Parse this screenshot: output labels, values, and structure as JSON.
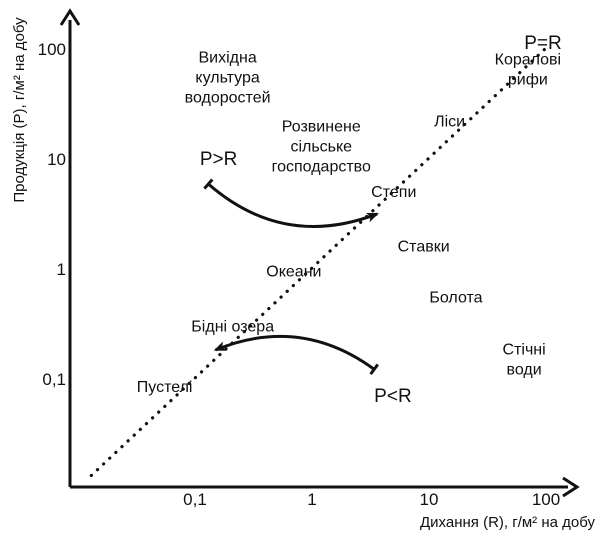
{
  "chart_data": {
    "type": "scatter",
    "title": "",
    "xlabel": "Дихання (R), г/м² на добу",
    "ylabel": "Продукція (P), г/м² на добу",
    "scale": "log",
    "xlim": [
      0.01,
      300
    ],
    "ylim": [
      0.01,
      300
    ],
    "x_ticks": [
      {
        "value": 0.1,
        "label": "0,1"
      },
      {
        "value": 1,
        "label": "1"
      },
      {
        "value": 10,
        "label": "10"
      },
      {
        "value": 100,
        "label": "100"
      }
    ],
    "y_ticks": [
      {
        "value": 0.1,
        "label": "0,1"
      },
      {
        "value": 1,
        "label": "1"
      },
      {
        "value": 10,
        "label": "10"
      },
      {
        "value": 100,
        "label": "100"
      }
    ],
    "grid": false,
    "diagonal": {
      "label": "P=R",
      "x": [
        0.013,
        100
      ],
      "y": [
        0.013,
        100
      ]
    },
    "regions": [
      {
        "lines": [
          "Вихідна",
          "культура",
          "водоростей"
        ],
        "x": 0.19,
        "y": 55
      },
      {
        "lines": [
          "Розвинене",
          "сільське",
          "господарство"
        ],
        "x": 1.2,
        "y": 13
      },
      {
        "lines": [
          "Коралові",
          "рифи"
        ],
        "x": 70,
        "y": 65
      },
      {
        "lines": [
          "Ліси"
        ],
        "x": 15,
        "y": 22
      },
      {
        "lines": [
          "Степи"
        ],
        "x": 5,
        "y": 5
      },
      {
        "lines": [
          "Ставки"
        ],
        "x": 9,
        "y": 1.6
      },
      {
        "lines": [
          "Океани"
        ],
        "x": 0.7,
        "y": 0.95
      },
      {
        "lines": [
          "Болота"
        ],
        "x": 17,
        "y": 0.55
      },
      {
        "lines": [
          "Бідні озера"
        ],
        "x": 0.21,
        "y": 0.3
      },
      {
        "lines": [
          "Стічні",
          "води"
        ],
        "x": 65,
        "y": 0.15
      },
      {
        "lines": [
          "Пустелі"
        ],
        "x": 0.055,
        "y": 0.085
      }
    ],
    "annotations": [
      {
        "label": "P>R",
        "x": 0.11,
        "y": 10
      },
      {
        "label": "P<R",
        "x": 3.4,
        "y": 0.07
      }
    ],
    "arrows": [
      {
        "from": [
          0.13,
          5.8
        ],
        "to": [
          3.6,
          3.1
        ]
      },
      {
        "from": [
          3.4,
          0.12
        ],
        "to": [
          0.15,
          0.18
        ]
      }
    ]
  }
}
